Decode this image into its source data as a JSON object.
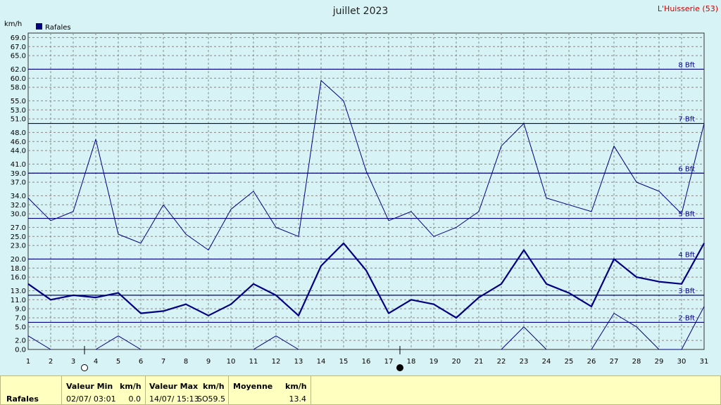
{
  "header": {
    "title": "juillet 2023",
    "location": "L'Huisserie (53)",
    "unit": "km/h",
    "legend_label": "Rafales"
  },
  "colors": {
    "background": "#d8f3f5",
    "series": "#000080",
    "grid": "#888888",
    "footer_bg": "#ffffc0",
    "location": "#cc0000"
  },
  "chart_data": {
    "type": "line",
    "x": [
      1,
      2,
      3,
      4,
      5,
      6,
      7,
      8,
      9,
      10,
      11,
      12,
      13,
      14,
      15,
      16,
      17,
      18,
      19,
      20,
      21,
      22,
      23,
      24,
      25,
      26,
      27,
      28,
      29,
      30,
      31
    ],
    "ylim": [
      0,
      70
    ],
    "y_ticks": [
      0.0,
      2.0,
      5.0,
      7.0,
      9.0,
      11.0,
      13.0,
      16.0,
      18.0,
      20.0,
      23.0,
      25.0,
      27.0,
      30.0,
      32.0,
      34.0,
      37.0,
      39.0,
      41.0,
      44.0,
      46.0,
      48.0,
      51.0,
      53.0,
      55.0,
      58.0,
      60.0,
      62.0,
      65.0,
      67.0,
      69.0
    ],
    "ylabel": "km/h",
    "grid": true,
    "legend_position": "top-left",
    "series": [
      {
        "name": "Rafales",
        "role": "max",
        "values": [
          33.5,
          28.5,
          30.5,
          46.5,
          25.5,
          23.5,
          32,
          25.5,
          22,
          31,
          35,
          27,
          25,
          59.5,
          55,
          39.5,
          28.5,
          30.5,
          25,
          27,
          30.5,
          45,
          50,
          33.5,
          32,
          30.5,
          45,
          37,
          35,
          30,
          50
        ]
      },
      {
        "name": "Rafales",
        "role": "mean",
        "values": [
          14.5,
          11,
          12,
          11.5,
          12.5,
          8,
          8.5,
          10,
          7.5,
          10,
          14.5,
          12,
          7.5,
          18.5,
          23.5,
          17.5,
          8,
          11,
          10,
          7,
          11.5,
          14.5,
          22,
          14.5,
          12.5,
          9.5,
          20,
          16,
          15,
          14.5,
          23.5
        ]
      },
      {
        "name": "Rafales",
        "role": "min",
        "values": [
          3,
          0,
          null,
          0,
          3,
          0,
          null,
          null,
          null,
          null,
          0,
          3,
          0,
          null,
          null,
          null,
          null,
          null,
          null,
          null,
          null,
          0,
          5,
          0,
          null,
          0,
          8,
          5,
          0,
          0,
          9.5
        ]
      }
    ],
    "beaufort": [
      {
        "label": "2 Bft",
        "value": 6
      },
      {
        "label": "3 Bft",
        "value": 12
      },
      {
        "label": "4 Bft",
        "value": 20
      },
      {
        "label": "5 Bft",
        "value": 29
      },
      {
        "label": "6 Bft",
        "value": 39
      },
      {
        "label": "7 Bft",
        "value": 50
      },
      {
        "label": "8 Bft",
        "value": 62
      }
    ],
    "moon_phases": [
      {
        "day": 3.5,
        "phase": "full-moon"
      },
      {
        "day": 17.5,
        "phase": "new-moon"
      }
    ]
  },
  "footer": {
    "row_label": "Rafales",
    "min_header": "Valeur Min",
    "min_unit": "km/h",
    "min_date": "02/07/  03:01",
    "min_value": "0.0",
    "max_header": "Valeur Max",
    "max_unit": "km/h",
    "max_date": "14/07/  15:13",
    "max_code": "SO",
    "max_value": "59.5",
    "mean_header": "Moyenne",
    "mean_unit": "km/h",
    "mean_value": "13.4"
  }
}
